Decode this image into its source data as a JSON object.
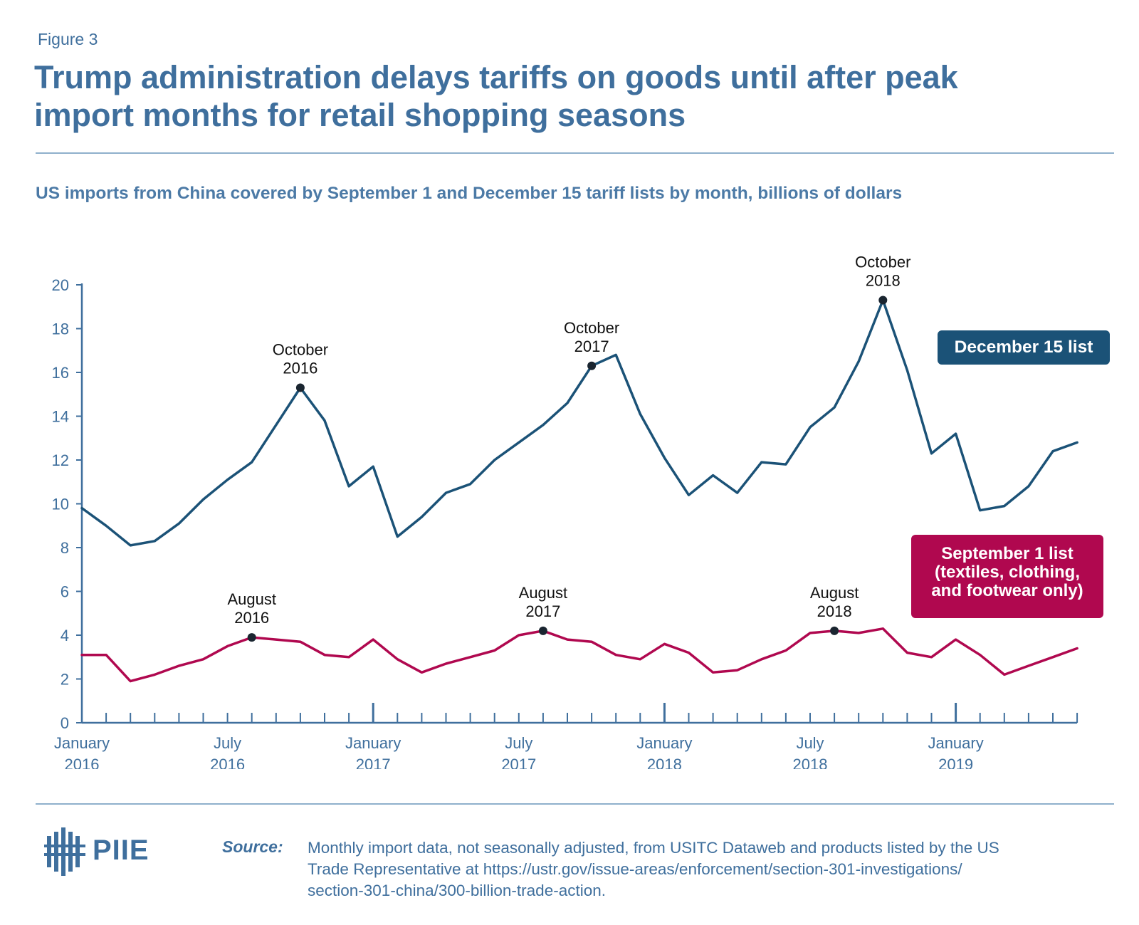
{
  "figure_label": "Figure 3",
  "title_lines": [
    "Trump administration delays tariffs on goods until after peak",
    "import months for retail shopping seasons"
  ],
  "subtitle": "US imports from China covered by September 1 and December 15 tariff lists by month, billions of dollars",
  "logo": {
    "text": "PIIE",
    "icon": "piie-building-logo-icon"
  },
  "source": {
    "label": "Source:",
    "lines": [
      "Monthly import data, not seasonally adjusted, from USITC Dataweb and products listed by the US",
      "Trade Representative at https://ustr.gov/issue-areas/enforcement/section-301-investigations/",
      "section-301-china/300-billion-trade-action."
    ]
  },
  "colors": {
    "december": "#1b5277",
    "september": "#b0084f",
    "axis": "#3f6f9d",
    "text": "#3f6f9d"
  },
  "chart_data": {
    "type": "line",
    "ylim": [
      0,
      20
    ],
    "yticks": [
      0,
      2,
      4,
      6,
      8,
      10,
      12,
      14,
      16,
      18,
      20
    ],
    "x_start": "2016-01",
    "x_count": 42,
    "xtick_labels": [
      {
        "index": 0,
        "line1": "January",
        "line2": "2016"
      },
      {
        "index": 6,
        "line1": "July",
        "line2": "2016"
      },
      {
        "index": 12,
        "line1": "January",
        "line2": "2017"
      },
      {
        "index": 18,
        "line1": "July",
        "line2": "2017"
      },
      {
        "index": 24,
        "line1": "January",
        "line2": "2018"
      },
      {
        "index": 30,
        "line1": "July",
        "line2": "2018"
      },
      {
        "index": 36,
        "line1": "January",
        "line2": "2019"
      }
    ],
    "major_ticks": [
      12,
      24,
      36
    ],
    "series": [
      {
        "name": "December 15 list",
        "color": "#1b5277",
        "values": [
          9.8,
          9.0,
          8.1,
          8.3,
          9.1,
          10.2,
          11.1,
          11.9,
          13.6,
          15.3,
          13.8,
          10.8,
          11.7,
          8.5,
          9.4,
          10.5,
          10.9,
          12.0,
          12.8,
          13.6,
          14.6,
          16.3,
          16.8,
          14.1,
          12.1,
          10.4,
          11.3,
          10.5,
          11.9,
          11.8,
          13.5,
          14.4,
          16.5,
          19.3,
          16.1,
          12.3,
          13.2,
          9.7,
          9.9,
          10.8,
          12.4,
          12.8
        ]
      },
      {
        "name": "September 1 list (textiles, clothing, and footwear only)",
        "color": "#b0084f",
        "values": [
          3.1,
          3.1,
          1.9,
          2.2,
          2.6,
          2.9,
          3.5,
          3.9,
          3.8,
          3.7,
          3.1,
          3.0,
          3.8,
          2.9,
          2.3,
          2.7,
          3.0,
          3.3,
          4.0,
          4.2,
          3.8,
          3.7,
          3.1,
          2.9,
          3.6,
          3.2,
          2.3,
          2.4,
          2.9,
          3.3,
          4.1,
          4.2,
          4.1,
          4.3,
          3.2,
          3.0,
          3.8,
          3.1,
          2.2,
          2.6,
          3.0,
          3.4
        ]
      }
    ],
    "annotations": [
      {
        "series": 0,
        "index": 9,
        "line1": "October",
        "line2": "2016"
      },
      {
        "series": 0,
        "index": 21,
        "line1": "October",
        "line2": "2017"
      },
      {
        "series": 0,
        "index": 33,
        "line1": "October",
        "line2": "2018"
      },
      {
        "series": 1,
        "index": 7,
        "line1": "August",
        "line2": "2016"
      },
      {
        "series": 1,
        "index": 19,
        "line1": "August",
        "line2": "2017"
      },
      {
        "series": 1,
        "index": 31,
        "line1": "August",
        "line2": "2018"
      }
    ],
    "legend": {
      "december": "December 15 list",
      "september_lines": [
        "September 1 list",
        "(textiles, clothing,",
        "and footwear only)"
      ]
    }
  }
}
